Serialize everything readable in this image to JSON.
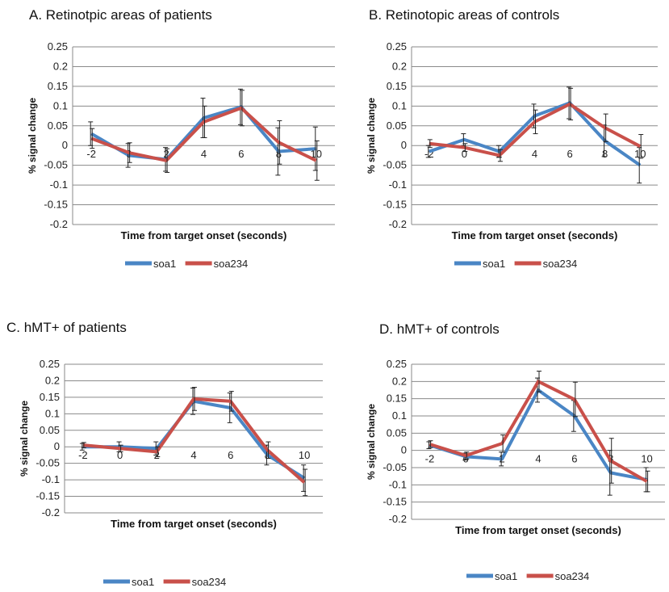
{
  "colors": {
    "soa1": "#4a86c5",
    "soa234": "#c9504a",
    "grid": "#8a8a8a",
    "error": "#222222"
  },
  "panels": [
    {
      "title": "A. Retinotpic areas of patients"
    },
    {
      "title": "B. Retinotopic areas of controls"
    },
    {
      "title": "C. hMT+ of patients"
    },
    {
      "title": "D. hMT+ of controls"
    }
  ],
  "chart_data": [
    {
      "type": "line",
      "title": "A. Retinotpic areas of patients",
      "xlabel": "Time from target onset (seconds)",
      "ylabel": "% signal change",
      "ylim": [
        -0.2,
        0.25
      ],
      "yticks": [
        "0.25",
        "0.2",
        "0.15",
        "0.1",
        "0.05",
        "0",
        "-0.05",
        "-0.1",
        "-0.15",
        "-0.2"
      ],
      "categories": [
        "-2",
        "0",
        "2",
        "4",
        "6",
        "8",
        "10"
      ],
      "grid": true,
      "legend": "bottom",
      "series": [
        {
          "name": "soa1",
          "values": [
            0.03,
            -0.025,
            -0.035,
            0.07,
            0.098,
            -0.015,
            -0.008
          ],
          "err": [
            0.03,
            0.03,
            0.03,
            0.05,
            0.045,
            0.06,
            0.055
          ]
        },
        {
          "name": "soa234",
          "values": [
            0.018,
            -0.018,
            -0.038,
            0.06,
            0.095,
            0.008,
            -0.038
          ],
          "err": [
            0.025,
            0.025,
            0.03,
            0.04,
            0.045,
            0.055,
            0.05
          ]
        }
      ]
    },
    {
      "type": "line",
      "title": "B. Retinotopic areas of controls",
      "xlabel": "Time from target onset (seconds)",
      "ylabel": "% signal change",
      "ylim": [
        -0.2,
        0.25
      ],
      "yticks": [
        "0.25",
        "0.2",
        "0.15",
        "0.1",
        "0.05",
        "0",
        "-0.05",
        "-0.1",
        "-0.15",
        "-0.2"
      ],
      "categories": [
        "-2",
        "0",
        "2",
        "4",
        "6",
        "8",
        "10"
      ],
      "grid": true,
      "legend": "bottom",
      "series": [
        {
          "name": "soa1",
          "values": [
            -0.015,
            0.015,
            -0.015,
            0.075,
            0.108,
            0.012,
            -0.05
          ],
          "err": [
            0.015,
            0.015,
            0.015,
            0.03,
            0.04,
            0.04,
            0.045
          ]
        },
        {
          "name": "soa234",
          "values": [
            0.005,
            -0.005,
            -0.025,
            0.06,
            0.105,
            0.045,
            -0.002
          ],
          "err": [
            0.01,
            0.01,
            0.015,
            0.03,
            0.04,
            0.035,
            0.03
          ]
        }
      ]
    },
    {
      "type": "line",
      "title": "C. hMT+ of patients",
      "xlabel": "Time from target onset (seconds)",
      "ylabel": "% signal change",
      "ylim": [
        -0.2,
        0.25
      ],
      "yticks": [
        "0.25",
        "0.2",
        "0.15",
        "0.1",
        "0.05",
        "0",
        "-0.05",
        "-0.1",
        "-0.15",
        "-0.2"
      ],
      "categories": [
        "-2",
        "0",
        "2",
        "4",
        "6",
        "8",
        "10"
      ],
      "grid": true,
      "legend": "bottom",
      "series": [
        {
          "name": "soa1",
          "values": [
            0.0,
            0.0,
            -0.005,
            0.138,
            0.118,
            -0.025,
            -0.095
          ],
          "err": [
            0.01,
            0.015,
            0.02,
            0.04,
            0.045,
            0.03,
            0.04
          ]
        },
        {
          "name": "soa234",
          "values": [
            0.005,
            -0.005,
            -0.015,
            0.145,
            0.138,
            -0.01,
            -0.108
          ],
          "err": [
            0.008,
            0.01,
            0.015,
            0.035,
            0.03,
            0.025,
            0.04
          ]
        }
      ]
    },
    {
      "type": "line",
      "title": "D. hMT+ of controls",
      "xlabel": "Time from target onset (seconds)",
      "ylabel": "% signal change",
      "ylim": [
        -0.2,
        0.25
      ],
      "yticks": [
        "0.25",
        "0.2",
        "0.15",
        "0.1",
        "0.05",
        "0",
        "-0.05",
        "-0.1",
        "-0.15",
        "-0.2"
      ],
      "categories": [
        "-2",
        "0",
        "2",
        "4",
        "6",
        "8",
        "10"
      ],
      "grid": true,
      "legend": "bottom",
      "series": [
        {
          "name": "soa1",
          "values": [
            0.015,
            -0.018,
            -0.025,
            0.175,
            0.1,
            -0.065,
            -0.085
          ],
          "err": [
            0.01,
            0.01,
            0.02,
            0.035,
            0.045,
            0.065,
            0.035
          ]
        },
        {
          "name": "soa234",
          "values": [
            0.018,
            -0.015,
            0.02,
            0.2,
            0.148,
            -0.03,
            -0.09
          ],
          "err": [
            0.01,
            0.01,
            0.025,
            0.03,
            0.05,
            0.065,
            0.03
          ]
        }
      ]
    }
  ]
}
